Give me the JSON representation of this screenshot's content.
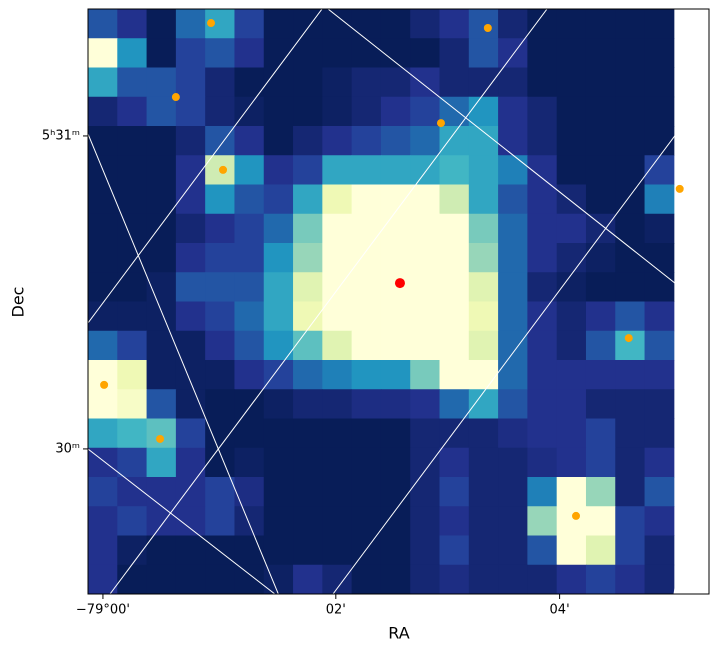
{
  "chart_data": {
    "type": "heatmap",
    "xlabel": "RA",
    "ylabel": "Dec",
    "xlim": [
      0,
      21.2
    ],
    "ylim": [
      0,
      20
    ],
    "xticks": [
      {
        "value": 0.51,
        "label": "−79°00'"
      },
      {
        "value": 8.46,
        "label": "02'"
      },
      {
        "value": 16.1,
        "label": "04'"
      }
    ],
    "yticks": [
      {
        "value": 15.66,
        "label": "5ʰ31ᵐ"
      },
      {
        "value": 4.96,
        "label": "30ᵐ"
      }
    ],
    "clim": [
      1,
      10
    ],
    "colormap": [
      "#081d58",
      "#253494",
      "#225ea8",
      "#1d91c0",
      "#41b6c4",
      "#7fcdbb",
      "#c7e9b4",
      "#edf8b1",
      "#ffffd9"
    ],
    "z": [
      [
        3,
        2,
        1,
        3.5,
        5,
        2.5,
        1,
        1,
        1,
        1,
        1,
        1.5,
        2,
        3,
        1.5,
        1,
        1,
        1,
        1,
        1
      ],
      [
        10,
        4.5,
        1,
        2.5,
        3,
        2,
        1,
        1,
        1,
        1,
        1,
        1,
        1.5,
        3,
        2,
        1,
        1,
        1,
        1,
        1
      ],
      [
        5,
        3,
        3,
        2.5,
        1.5,
        1,
        1,
        1,
        1.2,
        1.5,
        1.5,
        2,
        1.5,
        1.5,
        1.5,
        1,
        1,
        1,
        1,
        1
      ],
      [
        1.5,
        2,
        3,
        2.5,
        1.5,
        1.2,
        1,
        1,
        1.2,
        1.5,
        2,
        2.5,
        3.5,
        4.5,
        2,
        1.5,
        1,
        1,
        1,
        1
      ],
      [
        1,
        1,
        1,
        1.5,
        3,
        2,
        1,
        1.5,
        2,
        2.5,
        3,
        3.5,
        5,
        5,
        2,
        1.5,
        1,
        1,
        1,
        1
      ],
      [
        1,
        1,
        1,
        2,
        8,
        4.5,
        2,
        2.5,
        5,
        5,
        5,
        5,
        5.5,
        5,
        4,
        2,
        1,
        1,
        1,
        2.5
      ],
      [
        1,
        1,
        1,
        2,
        4.5,
        3,
        2.5,
        5,
        9,
        10,
        10,
        10,
        8,
        5,
        3,
        2,
        1.5,
        1,
        1,
        4
      ],
      [
        1,
        1,
        1,
        1.5,
        2,
        2.5,
        3.5,
        6.5,
        10,
        10,
        10,
        10,
        10,
        6.5,
        3.5,
        2,
        2,
        1.5,
        1,
        1.2
      ],
      [
        1,
        1,
        1,
        2,
        2.5,
        2.5,
        4.5,
        7,
        10,
        10,
        10,
        10,
        10,
        7,
        3.5,
        2,
        1.5,
        1.2,
        1,
        1
      ],
      [
        1,
        1,
        1.2,
        3,
        3,
        3,
        5,
        8.5,
        10,
        10,
        10,
        10,
        10,
        8.5,
        3.5,
        1.5,
        1.2,
        1,
        1,
        1
      ],
      [
        1.2,
        1.2,
        1.2,
        2,
        2.5,
        3.5,
        5,
        9,
        10,
        10,
        10,
        10,
        10,
        9,
        3.5,
        2,
        1.5,
        2,
        3,
        2
      ],
      [
        3.5,
        2.5,
        1.2,
        1.2,
        2,
        3,
        4.5,
        6,
        8.5,
        10,
        10,
        10,
        10,
        8.5,
        3.5,
        2,
        1.5,
        3,
        5.5,
        3
      ],
      [
        10,
        9,
        1.2,
        1.2,
        1.2,
        2,
        2.5,
        3.5,
        4,
        4.5,
        4.5,
        6.5,
        10,
        10,
        3.5,
        2,
        2,
        2,
        2,
        2
      ],
      [
        10,
        9.5,
        3,
        1.2,
        1,
        1,
        1.2,
        1.5,
        1.5,
        1.8,
        1.8,
        2,
        3.5,
        5,
        3,
        2,
        2,
        1.5,
        1.5,
        1.5
      ],
      [
        5,
        5.5,
        6,
        2.5,
        1,
        1,
        1,
        1,
        1,
        1,
        1,
        1.5,
        1.5,
        1.5,
        1.8,
        2,
        2,
        2.5,
        1.5,
        1.5
      ],
      [
        2,
        2.5,
        5,
        2,
        1,
        1.2,
        1,
        1,
        1,
        1,
        1,
        1.5,
        2,
        1.5,
        1.5,
        1.8,
        2,
        2.5,
        1.5,
        2
      ],
      [
        2.5,
        2,
        2,
        2,
        2.5,
        1.8,
        1,
        1,
        1,
        1,
        1,
        1.5,
        2.5,
        1.5,
        1.5,
        4,
        10,
        7,
        1.5,
        3
      ],
      [
        2,
        2.5,
        2,
        2,
        2.5,
        1.5,
        1,
        1,
        1,
        1,
        1,
        1.5,
        2,
        1.5,
        1.5,
        7,
        10,
        10,
        2.5,
        2
      ],
      [
        2,
        1.2,
        1,
        1,
        1,
        1,
        1,
        1,
        1,
        1,
        1,
        1.5,
        2.5,
        1.5,
        1.5,
        3,
        10,
        8.5,
        2.5,
        1.5
      ],
      [
        2,
        1,
        1,
        1,
        1,
        1,
        1.2,
        2,
        1.5,
        1,
        1,
        1.5,
        1.8,
        1.5,
        1.5,
        1.5,
        2,
        2.5,
        2,
        1.5
      ]
    ],
    "series": [
      {
        "color": "#ffa500",
        "x": [
          4.2,
          13.65,
          3.0,
          12.05,
          4.61,
          20.2,
          18.46,
          0.55,
          2.46,
          16.66
        ],
        "y": [
          19.52,
          19.35,
          16.99,
          16.1,
          14.5,
          13.85,
          8.75,
          7.15,
          5.3,
          2.67
        ]
      },
      {
        "color": "#ff0000",
        "x": [
          10.65
        ],
        "y": [
          10.63
        ]
      }
    ]
  }
}
